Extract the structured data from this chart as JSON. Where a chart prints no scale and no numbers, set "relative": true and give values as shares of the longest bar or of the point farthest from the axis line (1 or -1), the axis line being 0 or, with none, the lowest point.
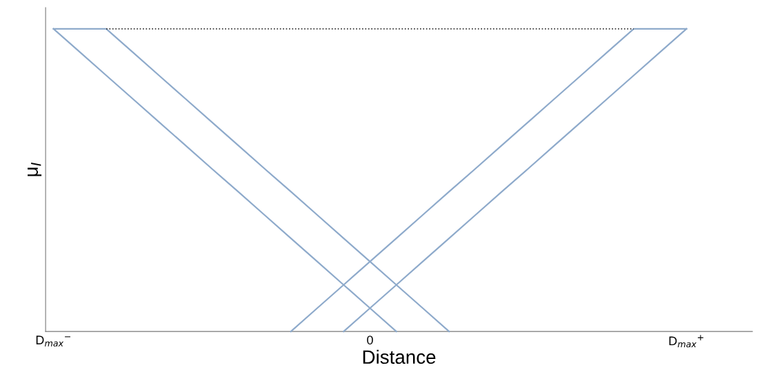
{
  "chart_data": {
    "type": "line",
    "relative": true,
    "xlabel": "Distance",
    "ylabel": "μ$_{I}$",
    "categories": [
      "D$_{max}$$^{−}$",
      null,
      null,
      null,
      null,
      null,
      null,
      null,
      null,
      null,
      null,
      null,
      "0",
      null,
      null,
      null,
      null,
      null,
      null,
      null,
      null,
      null,
      null,
      null,
      "D$_{max}$$^{+}$"
    ],
    "grid": false,
    "legend": false,
    "marker": "none",
    "series": [
      {
        "color": "#8eaacb",
        "values": [
          1,
          0.923,
          0.846,
          0.769,
          0.692,
          0.615,
          0.538,
          0.462,
          0.385,
          0.308,
          0.231,
          0.154,
          0.077,
          0,
          null,
          null,
          null,
          null,
          null,
          null,
          null,
          null,
          null,
          null,
          null
        ],
        "line_style": "solid"
      },
      {
        "color": "#8eaacb",
        "values": [
          1,
          1,
          1,
          0.923,
          0.846,
          0.769,
          0.692,
          0.615,
          0.538,
          0.462,
          0.385,
          0.308,
          0.231,
          0.154,
          0.077,
          0,
          null,
          null,
          null,
          null,
          null,
          null,
          null,
          null,
          null
        ],
        "line_style": "solid"
      },
      {
        "color": "#8eaacb",
        "values": [
          null,
          null,
          null,
          null,
          null,
          null,
          null,
          null,
          null,
          0,
          0.077,
          0.154,
          0.231,
          0.308,
          0.385,
          0.462,
          0.538,
          0.615,
          0.692,
          0.769,
          0.846,
          0.923,
          1,
          1,
          1
        ],
        "line_style": "solid"
      },
      {
        "color": "#8eaacb",
        "values": [
          null,
          null,
          null,
          null,
          null,
          null,
          null,
          null,
          null,
          null,
          null,
          0,
          0.077,
          0.154,
          0.231,
          0.308,
          0.385,
          0.462,
          0.538,
          0.615,
          0.692,
          0.769,
          0.846,
          0.923,
          1
        ],
        "line_style": "solid"
      },
      {
        "color": "#333333",
        "values": [
          null,
          null,
          1,
          1,
          1,
          1,
          1,
          1,
          1,
          1,
          1,
          1,
          1,
          1,
          1,
          1,
          1,
          1,
          1,
          1,
          1,
          1,
          1,
          null,
          null
        ],
        "line_style": "dotted"
      }
    ]
  }
}
